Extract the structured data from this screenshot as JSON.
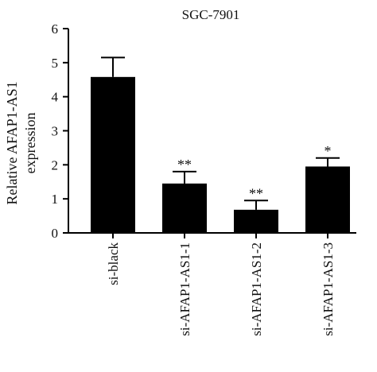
{
  "chart_data": {
    "type": "bar",
    "title": "SGC-7901",
    "ylabel_lines": [
      "Relative AFAP1-AS1",
      "expression"
    ],
    "xlabel": "",
    "categories": [
      "si-black",
      "si-AFAP1-AS1-1",
      "si-AFAP1-AS1-2",
      "si-AFAP1-AS1-3"
    ],
    "values": [
      4.58,
      1.45,
      0.68,
      1.95
    ],
    "errors": [
      0.57,
      0.35,
      0.27,
      0.25
    ],
    "annotations": [
      "",
      "**",
      "**",
      "*"
    ],
    "ylim": [
      0,
      6
    ],
    "yticks": [
      0,
      1,
      2,
      3,
      4,
      5,
      6
    ],
    "bar_color": "#000000",
    "grid": false
  }
}
